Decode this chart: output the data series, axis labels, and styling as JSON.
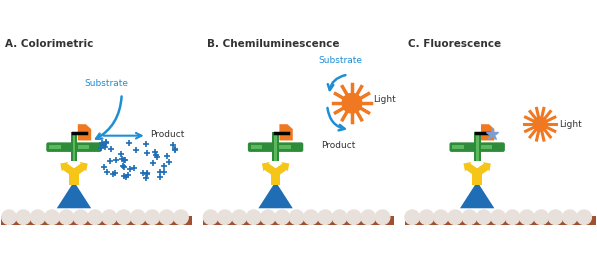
{
  "title_A": "A. Colorimetric",
  "title_B": "B. Chemiluminescence",
  "title_C": "C. Fluorescence",
  "bg_color": "#ffffff",
  "green_color": "#2e8b3a",
  "green_light": "#5cb85c",
  "yellow_color": "#f5c518",
  "blue_color": "#1e6db5",
  "orange_color": "#f07820",
  "brown_color": "#a05030",
  "arrow_color": "#1e8fd5",
  "dot_color": "#1e6db5",
  "star_color": "#f07820",
  "text_color": "#333333",
  "substrate_color": "#1e8fd5",
  "light_color": "#f07820"
}
